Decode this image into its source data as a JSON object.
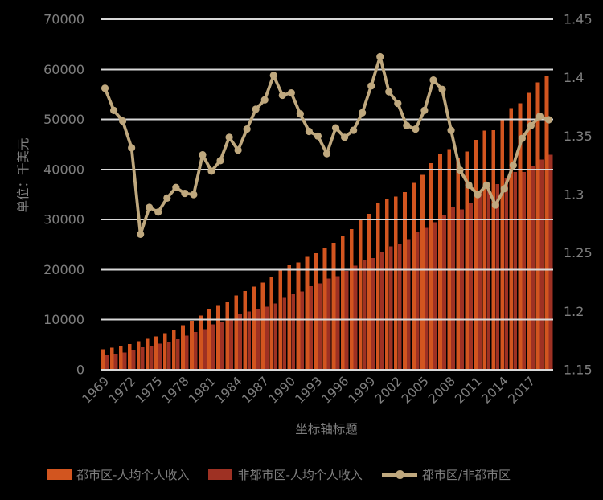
{
  "chart_data": {
    "type": "combo-bar-line",
    "x_axis_title": "坐标轴标题",
    "y_left_axis_title": "单位：千美元",
    "years": [
      1969,
      1970,
      1971,
      1972,
      1973,
      1974,
      1975,
      1976,
      1977,
      1978,
      1979,
      1980,
      1981,
      1982,
      1983,
      1984,
      1985,
      1986,
      1987,
      1988,
      1989,
      1990,
      1991,
      1992,
      1993,
      1994,
      1995,
      1996,
      1997,
      1998,
      1999,
      2000,
      2001,
      2002,
      2003,
      2004,
      2005,
      2006,
      2007,
      2008,
      2009,
      2010,
      2011,
      2012,
      2013,
      2014,
      2015,
      2016,
      2017,
      2018,
      2019
    ],
    "x_tick_labels": [
      "1969",
      "1972",
      "1975",
      "1978",
      "1981",
      "1984",
      "1987",
      "1990",
      "1993",
      "1996",
      "1999",
      "2002",
      "2005",
      "2008",
      "2011",
      "2014",
      "2017"
    ],
    "y_left": {
      "min": 0,
      "max": 70000,
      "step": 10000,
      "tick_labels": [
        "0",
        "10000",
        "20000",
        "30000",
        "40000",
        "50000",
        "60000",
        "70000"
      ]
    },
    "y_right": {
      "min": 1.15,
      "max": 1.45,
      "step": 0.05,
      "tick_labels": [
        "1.15",
        "1.2",
        "1.25",
        "1.3",
        "1.35",
        "1.4",
        "1.45"
      ]
    },
    "series": [
      {
        "name": "都市区-人均个人收入",
        "type": "bar",
        "axis": "left",
        "color": "#d2551f",
        "values": [
          4101,
          4398,
          4705,
          5127,
          5672,
          6176,
          6688,
          7296,
          7965,
          8882,
          9817,
          10837,
          12011,
          12729,
          13527,
          14858,
          15774,
          16585,
          17456,
          18624,
          19875,
          20881,
          21406,
          22573,
          23283,
          24301,
          25385,
          26691,
          28119,
          29906,
          31119,
          33261,
          34207,
          34628,
          35468,
          37293,
          38903,
          41230,
          43037,
          44057,
          42298,
          43567,
          45927,
          47782,
          47846,
          50107,
          52280,
          53249,
          55322,
          57411,
          58633
        ]
      },
      {
        "name": "非都市区-人均个人收入",
        "type": "bar",
        "axis": "left",
        "color": "#9e3123",
        "values": [
          2948,
          3206,
          3452,
          3826,
          4480,
          4791,
          5205,
          5625,
          6099,
          6827,
          7552,
          8124,
          9099,
          9578,
          10027,
          11105,
          11633,
          12080,
          12640,
          13284,
          14350,
          15055,
          15636,
          16671,
          17247,
          18203,
          18707,
          19786,
          20752,
          21829,
          22340,
          23457,
          24645,
          25129,
          26099,
          27502,
          28355,
          29492,
          30962,
          32514,
          32019,
          33308,
          35329,
          36531,
          37061,
          38396,
          39457,
          39502,
          40708,
          41998,
          42986
        ]
      },
      {
        "name": "都市区/非都市区",
        "type": "line",
        "axis": "right",
        "color": "#bfa87e",
        "values": [
          1.391,
          1.372,
          1.363,
          1.34,
          1.266,
          1.289,
          1.285,
          1.297,
          1.306,
          1.301,
          1.3,
          1.334,
          1.32,
          1.329,
          1.349,
          1.338,
          1.356,
          1.373,
          1.381,
          1.402,
          1.385,
          1.387,
          1.369,
          1.354,
          1.35,
          1.335,
          1.357,
          1.349,
          1.355,
          1.37,
          1.393,
          1.418,
          1.388,
          1.378,
          1.359,
          1.356,
          1.372,
          1.398,
          1.39,
          1.355,
          1.321,
          1.308,
          1.3,
          1.308,
          1.291,
          1.305,
          1.325,
          1.348,
          1.359,
          1.367,
          1.364
        ]
      }
    ],
    "layout": {
      "grid": true,
      "legend_position": "bottom",
      "background": "#000000",
      "grid_color": "#d9d9d9",
      "text_color": "#7f7f7f"
    }
  },
  "legend": {
    "items": [
      {
        "label": "都市区-人均个人收入"
      },
      {
        "label": "非都市区-人均个人收入"
      },
      {
        "label": "都市区/非都市区"
      }
    ]
  }
}
